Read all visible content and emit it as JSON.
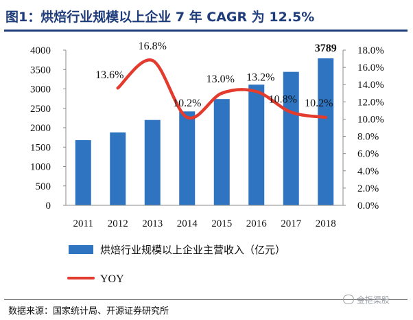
{
  "header": {
    "title": "图1：烘焙行业规模以上企业 7 年 CAGR 为 12.5%"
  },
  "footer": {
    "source": "数据来源：国家统计局、开源证券研究所",
    "watermark": "金拒渠股"
  },
  "legend": {
    "bar_label": "烘焙行业规模以上企业主营收入（亿元）",
    "line_label": "YOY"
  },
  "colors": {
    "bar": "#2e74c0",
    "line": "#e33b2e",
    "title": "#1f3d7a"
  },
  "chart_data": {
    "type": "bar",
    "categories": [
      "2011",
      "2012",
      "2013",
      "2014",
      "2015",
      "2016",
      "2017",
      "2018"
    ],
    "series": [
      {
        "name": "烘焙行业规模以上企业主营收入（亿元）",
        "type": "bar",
        "axis": "left",
        "values": [
          1680,
          1880,
          2200,
          2420,
          2740,
          3110,
          3440,
          3789
        ]
      },
      {
        "name": "YOY",
        "type": "line",
        "axis": "right",
        "x": [
          "2012",
          "2013",
          "2014",
          "2015",
          "2016",
          "2017",
          "2018"
        ],
        "values": [
          13.6,
          16.8,
          10.2,
          13.0,
          13.2,
          10.8,
          10.2
        ],
        "labels": [
          "13.6%",
          "16.8%",
          "10.2%",
          "13.0%",
          "13.2%",
          "10.8%",
          "10.2%"
        ]
      }
    ],
    "bar_value_labels": {
      "2018": "3789"
    },
    "y_left": {
      "lim": [
        0,
        4000
      ],
      "ticks": [
        "0",
        "500",
        "1000",
        "1500",
        "2000",
        "2500",
        "3000",
        "3500",
        "4000"
      ]
    },
    "y_right": {
      "lim": [
        0,
        18
      ],
      "ticks": [
        "0.0%",
        "2.0%",
        "4.0%",
        "6.0%",
        "8.0%",
        "10.0%",
        "12.0%",
        "14.0%",
        "16.0%",
        "18.0%"
      ]
    },
    "grid": false,
    "legend_position": "bottom"
  }
}
